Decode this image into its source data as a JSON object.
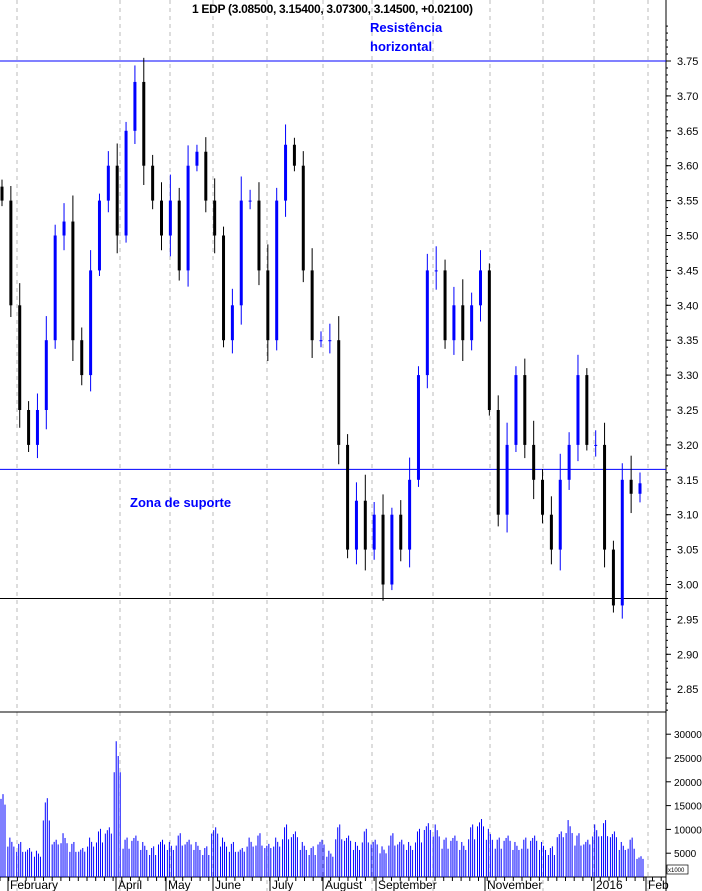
{
  "chart_data": {
    "type": "candlestick",
    "title": "1 EDP (3.08500, 3.15400, 3.07300, 3.14500, +0.02100)",
    "annotations": {
      "resistance": "Resistência horizontal",
      "support": "Zona de suporte"
    },
    "horizontal_lines": [
      3.75,
      3.165,
      2.98
    ],
    "price_axis": {
      "range": [
        2.8,
        3.8
      ],
      "ticks": [
        "3.75",
        "3.70",
        "3.65",
        "3.60",
        "3.55",
        "3.50",
        "3.45",
        "3.40",
        "3.35",
        "3.30",
        "3.25",
        "3.20",
        "3.15",
        "3.10",
        "3.05",
        "3.00",
        "2.95",
        "2.90",
        "2.85"
      ]
    },
    "volume_axis": {
      "unit": "x1000",
      "ticks": [
        "30000",
        "25000",
        "20000",
        "15000",
        "10000",
        "5000"
      ]
    },
    "x_labels": [
      "February",
      "April",
      "May",
      "June",
      "July",
      "August",
      "September",
      "November",
      "2016",
      "Feb"
    ],
    "closes": [
      3.55,
      3.4,
      3.25,
      3.2,
      3.25,
      3.35,
      3.5,
      3.52,
      3.35,
      3.3,
      3.45,
      3.55,
      3.6,
      3.5,
      3.65,
      3.72,
      3.6,
      3.55,
      3.5,
      3.55,
      3.45,
      3.6,
      3.62,
      3.55,
      3.5,
      3.35,
      3.4,
      3.55,
      3.55,
      3.45,
      3.35,
      3.55,
      3.63,
      3.6,
      3.45,
      3.35,
      3.35,
      3.35,
      3.2,
      3.05,
      3.12,
      3.05,
      3.1,
      3.0,
      3.1,
      3.05,
      3.15,
      3.3,
      3.45,
      3.45,
      3.35,
      3.4,
      3.35,
      3.4,
      3.45,
      3.25,
      3.1,
      3.2,
      3.3,
      3.2,
      3.15,
      3.1,
      3.05,
      3.15,
      3.2,
      3.3,
      3.2,
      3.2,
      3.05,
      2.97,
      3.15,
      3.13,
      3.145
    ],
    "volumes": [
      20000,
      9000,
      8000,
      7000,
      6000,
      18000,
      9000,
      10000,
      8000,
      7000,
      9000,
      11000,
      12000,
      31000,
      9000,
      10000,
      8000,
      7000,
      9000,
      8000,
      10000,
      9000,
      8000,
      7000,
      12000,
      9000,
      8000,
      7000,
      9000,
      10000,
      8000,
      9000,
      12000,
      11000,
      8000,
      7000,
      9000,
      6000,
      12000,
      10000,
      8000,
      11000,
      9000,
      7000,
      10000,
      9000,
      8000,
      11000,
      13000,
      12000,
      9000,
      10000,
      8000,
      12000,
      14000,
      11000,
      9000,
      10000,
      8000,
      9000,
      10000,
      8000,
      7000,
      11000,
      13000,
      10000,
      9000,
      12000,
      13000,
      11000,
      8000,
      9000,
      5000
    ],
    "colors": {
      "up": "#0000ff",
      "down": "#000000",
      "annotation": "#0000ff"
    }
  }
}
